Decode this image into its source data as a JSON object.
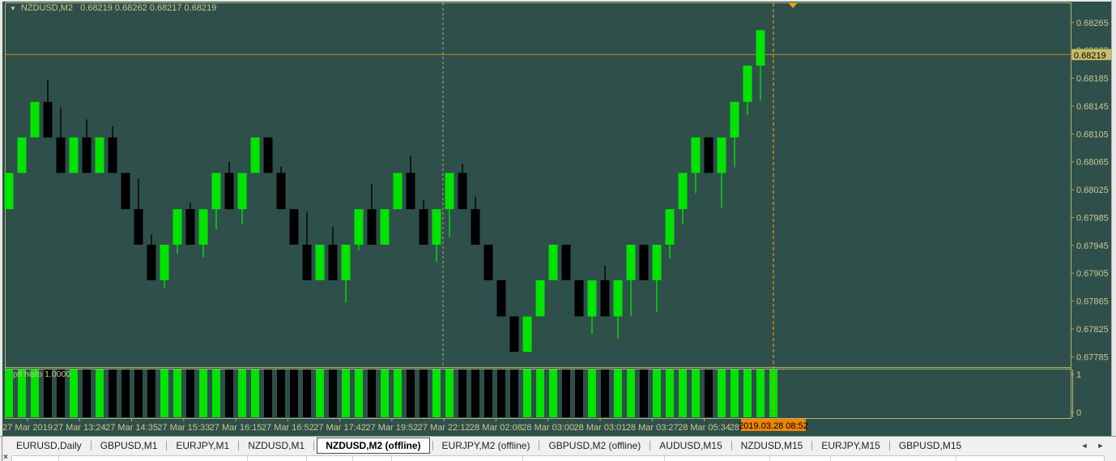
{
  "window": {
    "title": {
      "symbol": "NZDUSD,M2",
      "ohlc": "0.68219 0.68262 0.68217 0.68219"
    },
    "dropdown_glyph": "▼"
  },
  "chart_data": {
    "type": "candlestick",
    "symbol": "NZDUSD",
    "timeframe": "M2 (offline)",
    "open": "0.68219",
    "high": "0.68262",
    "low": "0.68217",
    "close": "0.68219",
    "current_price": 0.68219,
    "price_axis": {
      "tick_labels": [
        "0.68265",
        "0.68225",
        "0.68185",
        "0.68145",
        "0.68105",
        "0.68065",
        "0.68025",
        "0.67985",
        "0.67945",
        "0.67905",
        "0.67865",
        "0.67825",
        "0.67785"
      ],
      "ylim": [
        0.67768,
        0.68288
      ],
      "current_price_label": "0.68219"
    },
    "time_axis": {
      "labels": [
        "27 Mar 2019",
        "27 Mar 13:24",
        "27 Mar 14:35",
        "27 Mar 15:33",
        "27 Mar 16:15",
        "27 Mar 16:52",
        "27 Mar 17:42",
        "27 Mar 19:52",
        "27 Mar 22:12",
        "28 Mar 02:08",
        "28 Mar 03:00",
        "28 Mar 03:01",
        "28 Mar 03:27",
        "28 Mar 05:34"
      ],
      "partial_label": "28",
      "cursor_label": "2019.03.28 08:52"
    },
    "brick_levels": [
      0.67792,
      0.67843,
      0.67895,
      0.67946,
      0.67997,
      0.68049,
      0.681,
      0.68151,
      0.68203,
      0.68254
    ],
    "candles": [
      {
        "c": "g",
        "b": 4
      },
      {
        "c": "g",
        "b": 5
      },
      {
        "c": "g",
        "b": 6
      },
      {
        "c": "k",
        "b": 6,
        "wh": 0.68183
      },
      {
        "c": "k",
        "b": 5,
        "wh": 0.68143
      },
      {
        "c": "g",
        "b": 5
      },
      {
        "c": "k",
        "b": 5,
        "wh": 0.68126
      },
      {
        "c": "g",
        "b": 5
      },
      {
        "c": "k",
        "b": 5,
        "wh": 0.68116
      },
      {
        "c": "k",
        "b": 4
      },
      {
        "c": "k",
        "b": 3,
        "wh": 0.68041
      },
      {
        "c": "k",
        "b": 2,
        "wh": 0.67961
      },
      {
        "c": "g",
        "b": 2,
        "wl": 0.67884
      },
      {
        "c": "g",
        "b": 3,
        "wl": 0.67933
      },
      {
        "c": "k",
        "b": 3,
        "wh": 0.68006
      },
      {
        "c": "g",
        "b": 3,
        "wl": 0.67928
      },
      {
        "c": "g",
        "b": 4,
        "wl": 0.67968
      },
      {
        "c": "k",
        "b": 4,
        "wh": 0.68065
      },
      {
        "c": "g",
        "b": 4,
        "wl": 0.67975
      },
      {
        "c": "g",
        "b": 5
      },
      {
        "c": "k",
        "b": 5
      },
      {
        "c": "k",
        "b": 4,
        "wh": 0.68058
      },
      {
        "c": "k",
        "b": 3
      },
      {
        "c": "k",
        "b": 2,
        "wh": 0.67992
      },
      {
        "c": "g",
        "b": 2
      },
      {
        "c": "k",
        "b": 2,
        "wh": 0.67971
      },
      {
        "c": "g",
        "b": 2,
        "wl": 0.67863
      },
      {
        "c": "g",
        "b": 3,
        "wl": 0.67938
      },
      {
        "c": "k",
        "b": 3,
        "wh": 0.68033
      },
      {
        "c": "g",
        "b": 3
      },
      {
        "c": "g",
        "b": 4
      },
      {
        "c": "k",
        "b": 4,
        "wh": 0.68074
      },
      {
        "c": "k",
        "b": 3,
        "wh": 0.6801
      },
      {
        "c": "g",
        "b": 3,
        "wl": 0.67921
      },
      {
        "c": "g",
        "b": 4,
        "wl": 0.67957
      },
      {
        "c": "k",
        "b": 4,
        "wh": 0.68062
      },
      {
        "c": "k",
        "b": 3,
        "wh": 0.68015
      },
      {
        "c": "k",
        "b": 2
      },
      {
        "c": "k",
        "b": 1
      },
      {
        "c": "k",
        "b": 0
      },
      {
        "c": "g",
        "b": 0
      },
      {
        "c": "g",
        "b": 1
      },
      {
        "c": "g",
        "b": 2
      },
      {
        "c": "k",
        "b": 2
      },
      {
        "c": "k",
        "b": 1
      },
      {
        "c": "g",
        "b": 1,
        "wl": 0.67818
      },
      {
        "c": "k",
        "b": 1,
        "wh": 0.67916
      },
      {
        "c": "g",
        "b": 1,
        "wl": 0.67811
      },
      {
        "c": "g",
        "b": 2,
        "wl": 0.67843
      },
      {
        "c": "k",
        "b": 2
      },
      {
        "c": "g",
        "b": 2,
        "wl": 0.67849
      },
      {
        "c": "g",
        "b": 3,
        "wl": 0.67926
      },
      {
        "c": "g",
        "b": 4,
        "wl": 0.67975
      },
      {
        "c": "g",
        "b": 5,
        "wl": 0.6802
      },
      {
        "c": "k",
        "b": 5
      },
      {
        "c": "g",
        "b": 5,
        "wl": 0.67999
      },
      {
        "c": "g",
        "b": 6,
        "wl": 0.68057
      },
      {
        "c": "g",
        "b": 7,
        "wl": 0.68132
      },
      {
        "c": "g",
        "b": 8,
        "wl": 0.68153
      }
    ],
    "histogram": {
      "name": "ptl histo",
      "value_label": "1.0000",
      "scale_top": "1",
      "scale_bottom": "0",
      "value": 1,
      "extra_bars": 1
    },
    "markers": {
      "arrow_down_bar": 60.5
    },
    "separators": {
      "session_break_bar": 33.5,
      "cursor_bar": 59
    }
  },
  "colors": {
    "background": "#2f4f4b",
    "foreground_khaki": "#c9c98d",
    "grid_khaki": "#b2b274",
    "bull": "#00e400",
    "bear": "#000000",
    "price_line": "#c88114",
    "cursor_line": "#d98e1d",
    "price_box_bg": "#c6bf68",
    "time_box_bg": "#ef8500",
    "marker": "#eda01a"
  },
  "tabs": {
    "items": [
      "EURUSD,Daily",
      "GBPUSD,M1",
      "EURJPY,M1",
      "NZDUSD,M1",
      "NZDUSD,M2 (offline)",
      "EURJPY,M2 (offline)",
      "GBPUSD,M2 (offline)",
      "AUDUSD,M15",
      "NZDUSD,M15",
      "EURJPY,M15",
      "GBPUSD,M15"
    ],
    "active_index": 4,
    "scroll_left": "◄",
    "scroll_right": "►"
  },
  "bottom_bar": {
    "close_glyph": "×"
  }
}
